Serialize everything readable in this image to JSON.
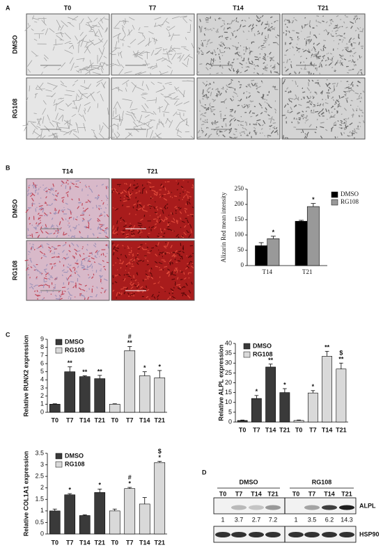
{
  "panel_labels": [
    "A",
    "B",
    "C",
    "D"
  ],
  "panel_a": {
    "columns": [
      "T0",
      "T7",
      "T14",
      "T21"
    ],
    "rows": [
      "DMSO",
      "RG108"
    ]
  },
  "panel_b_images": {
    "columns": [
      "T14",
      "T21"
    ],
    "rows": [
      "DMSO",
      "RG108"
    ]
  },
  "chart_data": [
    {
      "type": "bar",
      "ylabel": "Alizarin Red mean intensity",
      "categories": [
        "T14",
        "T21"
      ],
      "series": [
        {
          "name": "DMSO",
          "color": "#000000",
          "values": [
            65,
            145
          ],
          "errors": [
            10,
            3
          ],
          "marks": [
            [],
            []
          ]
        },
        {
          "name": "RG108",
          "color": "#999999",
          "values": [
            88,
            193
          ],
          "errors": [
            8,
            10
          ],
          "marks": [
            [
              "*"
            ],
            [
              "*"
            ]
          ]
        }
      ],
      "ylim": [
        0,
        250
      ],
      "yticks": [
        0,
        50,
        100,
        150,
        200,
        250
      ],
      "legend": "right"
    },
    {
      "type": "bar",
      "ylabel": "Relative RUNX2 expression",
      "categories": [
        "T0",
        "T7",
        "T14",
        "T21",
        "T0",
        "T7",
        "T14",
        "T21"
      ],
      "series": [
        {
          "name": "DMSO",
          "color": "#3a3a3a",
          "values": [
            1,
            5,
            4.4,
            4.15,
            null,
            null,
            null,
            null
          ],
          "errors": [
            0.05,
            0.6,
            0.1,
            0.4,
            null,
            null,
            null,
            null
          ],
          "marks": [
            [],
            [
              "**"
            ],
            [
              "**"
            ],
            [
              "**"
            ],
            [],
            [],
            [],
            []
          ]
        },
        {
          "name": "RG108",
          "color": "#d9d9d9",
          "values": [
            null,
            null,
            null,
            null,
            1,
            7.6,
            4.5,
            4.25
          ],
          "errors": [
            null,
            null,
            null,
            null,
            0.05,
            0.5,
            0.5,
            0.9
          ],
          "marks": [
            [],
            [],
            [],
            [],
            [],
            [
              "#",
              "**"
            ],
            [
              "*"
            ],
            [
              "*"
            ]
          ]
        }
      ],
      "ylim": [
        0,
        9
      ],
      "yticks": [
        0,
        1,
        2,
        3,
        4,
        5,
        6,
        7,
        8,
        9
      ],
      "legend": "upper left"
    },
    {
      "type": "bar",
      "ylabel": "Relative ALPL expression",
      "categories": [
        "T0",
        "T7",
        "T14",
        "T21",
        "T0",
        "T7",
        "T14",
        "T21"
      ],
      "series": [
        {
          "name": "DMSO",
          "color": "#3a3a3a",
          "values": [
            0.8,
            12,
            28,
            15,
            null,
            null,
            null,
            null
          ],
          "errors": [
            0.2,
            1.5,
            1.5,
            2,
            null,
            null,
            null,
            null
          ],
          "marks": [
            [],
            [
              "*"
            ],
            [
              "**"
            ],
            [
              "*"
            ],
            [],
            [],
            [],
            []
          ]
        },
        {
          "name": "RG108",
          "color": "#d9d9d9",
          "values": [
            null,
            null,
            null,
            null,
            0.8,
            14.8,
            33.5,
            27
          ],
          "errors": [
            null,
            null,
            null,
            null,
            0.2,
            1.2,
            2.5,
            3
          ],
          "marks": [
            [],
            [],
            [],
            [],
            [],
            [
              "*"
            ],
            [
              "**"
            ],
            [
              "$",
              "**"
            ]
          ]
        }
      ],
      "ylim": [
        0,
        40
      ],
      "yticks": [
        0,
        5,
        10,
        15,
        20,
        25,
        30,
        35,
        40
      ],
      "legend": "upper left"
    },
    {
      "type": "bar",
      "ylabel": "Relative COL1A1 expression",
      "categories": [
        "T0",
        "T7",
        "T14",
        "T21",
        "T0",
        "T7",
        "T14",
        "T21"
      ],
      "series": [
        {
          "name": "DMSO",
          "color": "#3a3a3a",
          "values": [
            1,
            1.7,
            0.8,
            1.8,
            null,
            null,
            null,
            null
          ],
          "errors": [
            0.08,
            0.05,
            0.03,
            0.15,
            null,
            null,
            null,
            null
          ],
          "marks": [
            [],
            [
              "*"
            ],
            [],
            [
              "*"
            ],
            [],
            [],
            [],
            []
          ]
        },
        {
          "name": "RG108",
          "color": "#d9d9d9",
          "values": [
            null,
            null,
            null,
            null,
            1,
            1.97,
            1.3,
            3.1
          ],
          "errors": [
            null,
            null,
            null,
            null,
            0.08,
            0.05,
            0.28,
            0.05
          ],
          "marks": [
            [],
            [],
            [],
            [],
            [],
            [
              "#",
              "*"
            ],
            [],
            [
              "$",
              "*"
            ]
          ]
        }
      ],
      "ylim": [
        0,
        3.5
      ],
      "yticks": [
        0,
        0.5,
        1,
        1.5,
        2,
        2.5,
        3,
        3.5
      ],
      "legend": "upper left"
    }
  ],
  "panel_d": {
    "groups": [
      "DMSO",
      "RG108"
    ],
    "lanes": [
      "T0",
      "T7",
      "T14",
      "T21",
      "T0",
      "T7",
      "T14",
      "T21"
    ],
    "bands": [
      "ALPL",
      "HSP90"
    ],
    "quantification": [
      1,
      3.7,
      2.7,
      7.2,
      1,
      3.5,
      6.2,
      14.3
    ]
  }
}
